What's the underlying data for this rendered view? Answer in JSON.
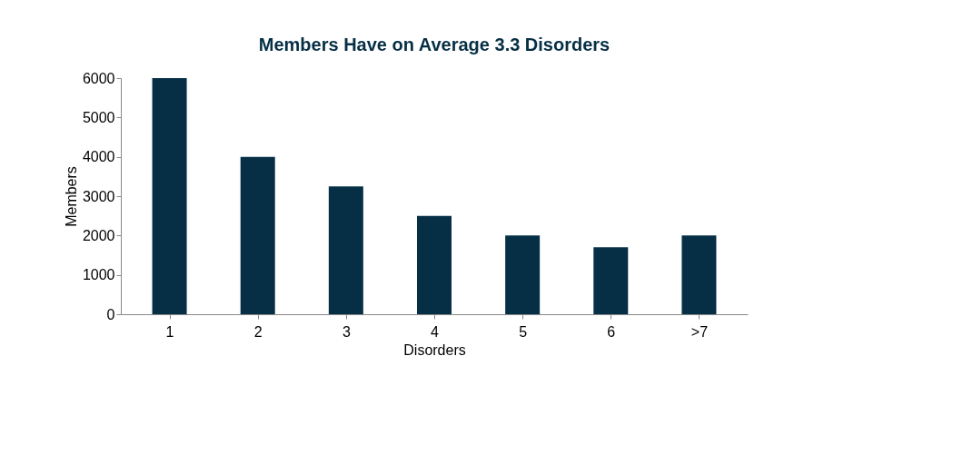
{
  "chart_data": {
    "type": "bar",
    "title": "Members Have on Average 3.3 Disorders",
    "xlabel": "Disorders",
    "ylabel": "Members",
    "categories": [
      "1",
      "2",
      "3",
      "4",
      "5",
      "6",
      ">7"
    ],
    "values": [
      6000,
      4000,
      3250,
      2500,
      2000,
      1700,
      2000
    ],
    "color": "#062f45",
    "ylim": [
      0,
      6000
    ],
    "yticks": [
      0,
      1000,
      2000,
      3000,
      4000,
      5000,
      6000
    ],
    "grid": false
  }
}
